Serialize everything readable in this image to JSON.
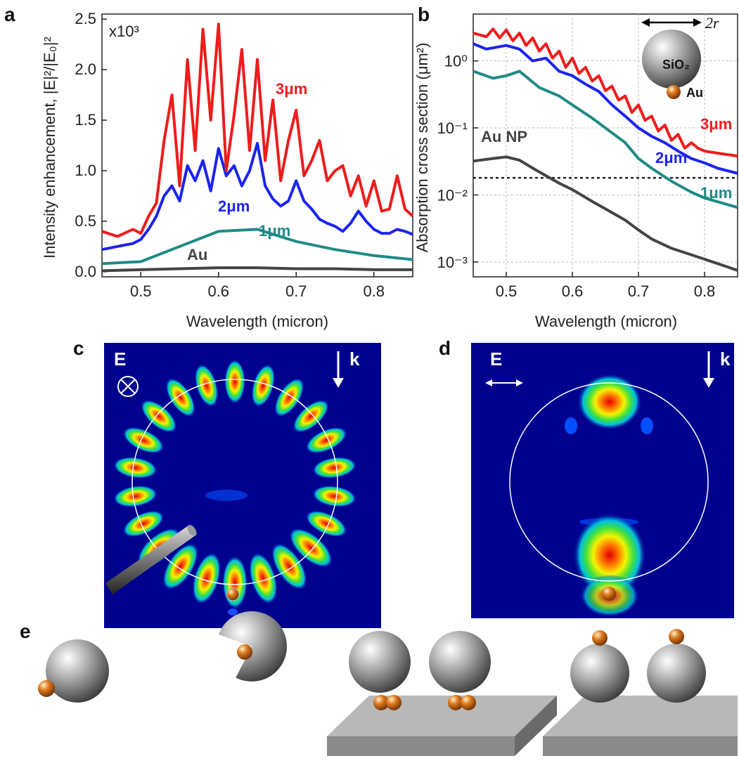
{
  "panel_labels": [
    "a",
    "b",
    "c",
    "d",
    "e"
  ],
  "chart_data": [
    {
      "type": "line",
      "panel": "a",
      "xlabel": "Wavelength (micron)",
      "ylabel": "Intensity enhancement, |E|²/|E₀|²",
      "y_multiplier_label": "x10³",
      "xlim": [
        0.45,
        0.85
      ],
      "ylim": [
        -0.05,
        2.55
      ],
      "xticks": [
        0.5,
        0.6,
        0.7,
        0.8
      ],
      "yticks": [
        0.0,
        0.5,
        1.0,
        1.5,
        2.0,
        2.5
      ],
      "grid": false,
      "series": [
        {
          "name": "3μm",
          "color": "#ee1c1c",
          "x": [
            0.45,
            0.47,
            0.49,
            0.5,
            0.51,
            0.52,
            0.53,
            0.54,
            0.55,
            0.56,
            0.57,
            0.58,
            0.59,
            0.6,
            0.61,
            0.62,
            0.63,
            0.64,
            0.65,
            0.66,
            0.67,
            0.68,
            0.69,
            0.7,
            0.71,
            0.72,
            0.73,
            0.74,
            0.75,
            0.76,
            0.77,
            0.78,
            0.79,
            0.8,
            0.81,
            0.82,
            0.83,
            0.84,
            0.85
          ],
          "y": [
            0.4,
            0.35,
            0.42,
            0.38,
            0.55,
            0.68,
            1.3,
            1.75,
            0.85,
            2.1,
            1.2,
            2.4,
            1.5,
            2.45,
            1.0,
            1.55,
            2.2,
            1.2,
            2.1,
            1.1,
            1.7,
            0.9,
            1.3,
            1.6,
            0.95,
            1.1,
            1.3,
            0.9,
            1.0,
            1.05,
            0.75,
            0.95,
            0.65,
            0.9,
            0.6,
            0.62,
            0.95,
            0.62,
            0.55
          ]
        },
        {
          "name": "2μm",
          "color": "#1c24ee",
          "x": [
            0.45,
            0.47,
            0.49,
            0.5,
            0.51,
            0.52,
            0.53,
            0.54,
            0.55,
            0.56,
            0.57,
            0.58,
            0.59,
            0.6,
            0.61,
            0.62,
            0.63,
            0.64,
            0.65,
            0.66,
            0.67,
            0.68,
            0.69,
            0.7,
            0.71,
            0.72,
            0.73,
            0.74,
            0.75,
            0.76,
            0.77,
            0.78,
            0.79,
            0.8,
            0.81,
            0.82,
            0.83,
            0.84,
            0.85
          ],
          "y": [
            0.22,
            0.25,
            0.28,
            0.32,
            0.42,
            0.55,
            0.75,
            0.85,
            0.7,
            1.05,
            0.9,
            1.1,
            0.8,
            1.22,
            0.95,
            1.05,
            0.85,
            1.0,
            1.27,
            0.85,
            0.72,
            0.65,
            0.7,
            0.9,
            0.7,
            0.62,
            0.52,
            0.48,
            0.45,
            0.4,
            0.48,
            0.6,
            0.5,
            0.42,
            0.38,
            0.38,
            0.42,
            0.4,
            0.37
          ]
        },
        {
          "name": "1μm",
          "color": "#1f8a85",
          "x": [
            0.45,
            0.5,
            0.55,
            0.6,
            0.65,
            0.7,
            0.75,
            0.8,
            0.85
          ],
          "y": [
            0.08,
            0.1,
            0.25,
            0.4,
            0.42,
            0.3,
            0.22,
            0.16,
            0.12
          ]
        },
        {
          "name": "Au",
          "color": "#444444",
          "x": [
            0.45,
            0.5,
            0.55,
            0.6,
            0.65,
            0.7,
            0.75,
            0.8,
            0.85
          ],
          "y": [
            0.01,
            0.02,
            0.03,
            0.04,
            0.04,
            0.03,
            0.03,
            0.02,
            0.02
          ]
        }
      ]
    },
    {
      "type": "line",
      "panel": "b",
      "xlabel": "Wavelength (micron)",
      "ylabel": "Absorption cross section (μm²)",
      "yscale": "log",
      "xlim": [
        0.45,
        0.85
      ],
      "ylim": [
        0.0006,
        5
      ],
      "xticks": [
        0.5,
        0.6,
        0.7,
        0.8
      ],
      "yticks": [
        0.001,
        0.01,
        0.1,
        1
      ],
      "ytick_labels": [
        "10⁻³",
        "10⁻²",
        "10⁻¹",
        "10⁰"
      ],
      "grid": true,
      "reference_line": {
        "y": 0.018,
        "style": "dotted"
      },
      "series": [
        {
          "name": "3μm",
          "color": "#ee1c1c",
          "x": [
            0.45,
            0.47,
            0.48,
            0.49,
            0.5,
            0.51,
            0.52,
            0.53,
            0.54,
            0.55,
            0.56,
            0.57,
            0.58,
            0.59,
            0.6,
            0.61,
            0.62,
            0.63,
            0.64,
            0.65,
            0.66,
            0.67,
            0.68,
            0.69,
            0.7,
            0.71,
            0.72,
            0.73,
            0.74,
            0.75,
            0.76,
            0.77,
            0.78,
            0.79,
            0.8,
            0.82,
            0.85
          ],
          "y": [
            2.6,
            2.3,
            3.0,
            2.2,
            2.9,
            2.0,
            2.6,
            1.7,
            2.2,
            1.4,
            1.8,
            1.1,
            1.4,
            0.8,
            1.1,
            0.65,
            0.8,
            0.5,
            0.6,
            0.36,
            0.42,
            0.26,
            0.3,
            0.17,
            0.22,
            0.13,
            0.15,
            0.09,
            0.11,
            0.065,
            0.08,
            0.05,
            0.06,
            0.05,
            0.045,
            0.042,
            0.038
          ]
        },
        {
          "name": "2μm",
          "color": "#1c24ee",
          "x": [
            0.45,
            0.47,
            0.5,
            0.52,
            0.54,
            0.56,
            0.58,
            0.6,
            0.62,
            0.64,
            0.66,
            0.68,
            0.7,
            0.72,
            0.74,
            0.76,
            0.78,
            0.8,
            0.82,
            0.85
          ],
          "y": [
            1.8,
            1.5,
            1.7,
            1.5,
            1.0,
            1.1,
            0.7,
            0.6,
            0.45,
            0.35,
            0.22,
            0.15,
            0.1,
            0.075,
            0.06,
            0.045,
            0.035,
            0.03,
            0.025,
            0.021
          ]
        },
        {
          "name": "1μm",
          "color": "#1f8a85",
          "x": [
            0.45,
            0.48,
            0.5,
            0.52,
            0.55,
            0.58,
            0.6,
            0.63,
            0.65,
            0.68,
            0.7,
            0.72,
            0.75,
            0.78,
            0.8,
            0.85
          ],
          "y": [
            0.7,
            0.55,
            0.6,
            0.7,
            0.4,
            0.3,
            0.22,
            0.14,
            0.1,
            0.06,
            0.035,
            0.025,
            0.016,
            0.011,
            0.009,
            0.0065
          ]
        },
        {
          "name": "Au NP",
          "color": "#444444",
          "x": [
            0.45,
            0.48,
            0.5,
            0.52,
            0.55,
            0.58,
            0.6,
            0.63,
            0.65,
            0.68,
            0.7,
            0.72,
            0.75,
            0.8,
            0.85
          ],
          "y": [
            0.032,
            0.035,
            0.037,
            0.033,
            0.022,
            0.015,
            0.012,
            0.008,
            0.0062,
            0.0042,
            0.003,
            0.0022,
            0.0016,
            0.0011,
            0.00075
          ]
        }
      ]
    }
  ],
  "panel_a": {
    "xlabel": "Wavelength (micron)",
    "ylabel": "Intensity enhancement, |E|²/|E₀|²",
    "multiplier": "x10³",
    "labels": {
      "s3": "3μm",
      "s2": "2μm",
      "s1": "1μm",
      "au": "Au"
    }
  },
  "panel_b": {
    "xlabel": "Wavelength (micron)",
    "ylabel": "Absorption cross section (μm²)",
    "labels": {
      "s3": "3μm",
      "s2": "2μm",
      "s1": "1μm",
      "au": "Au NP"
    },
    "inset": {
      "sphere": "SiO₂",
      "particle": "Au",
      "diameter": "2r"
    }
  },
  "panel_c": {
    "field_label": "E",
    "wave_label": "k"
  },
  "panel_d": {
    "field_label": "E",
    "wave_label": "k"
  },
  "colors": {
    "red": "#ee1c1c",
    "blue": "#1c24ee",
    "teal": "#1f8a85",
    "gray": "#444444",
    "field_bg": "#00008f"
  }
}
